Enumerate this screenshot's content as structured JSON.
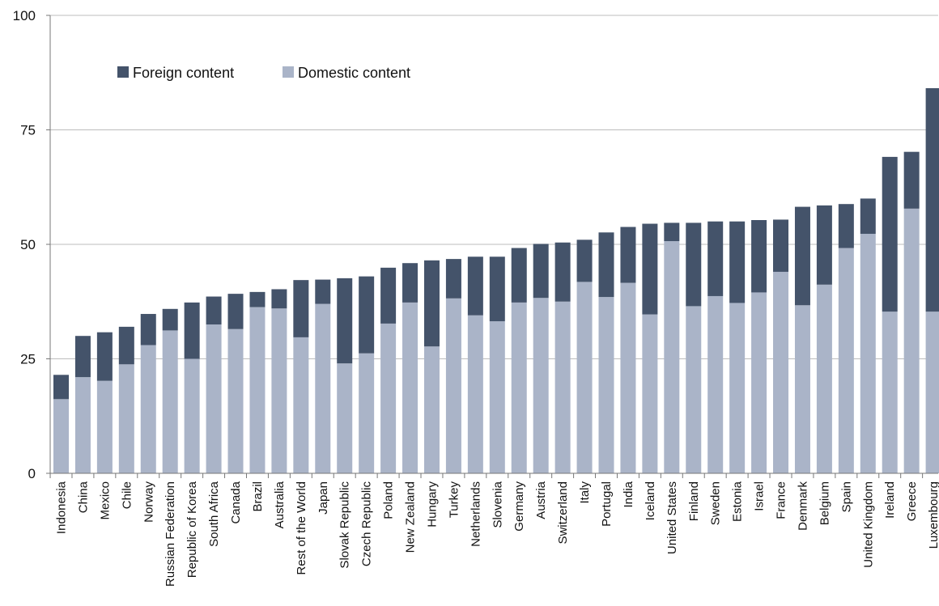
{
  "chart_data": {
    "type": "bar",
    "stacked": true,
    "categories": [
      "Indonesia",
      "China",
      "Mexico",
      "Chile",
      "Norway",
      "Russian Federation",
      "Republic of Korea",
      "South Africa",
      "Canada",
      "Brazil",
      "Australia",
      "Rest of the World",
      "Japan",
      "Slovak Republic",
      "Czech Republic",
      "Poland",
      "New Zealand",
      "Hungary",
      "Turkey",
      "Netherlands",
      "Slovenia",
      "Germany",
      "Austria",
      "Switzerland",
      "Italy",
      "Portugal",
      "India",
      "Iceland",
      "United States",
      "Finland",
      "Sweden",
      "Estonia",
      "Israel",
      "France",
      "Denmark",
      "Belgium",
      "Spain",
      "United Kingdom",
      "Ireland",
      "Greece",
      "Luxembourg"
    ],
    "series": [
      {
        "name": "Domestic content",
        "color": "#aab4c8",
        "values": [
          16.2,
          21.0,
          20.2,
          23.8,
          28.0,
          31.2,
          25.0,
          32.5,
          31.5,
          36.3,
          36.0,
          29.7,
          37.0,
          24.0,
          26.2,
          32.7,
          37.3,
          27.7,
          38.2,
          34.5,
          33.2,
          37.3,
          38.3,
          37.5,
          41.8,
          38.5,
          41.6,
          34.7,
          50.7,
          36.5,
          38.7,
          37.2,
          39.5,
          44.0,
          36.7,
          41.2,
          49.2,
          52.3,
          35.3,
          57.8,
          35.3
        ]
      },
      {
        "name": "Foreign content",
        "color": "#44536a",
        "values": [
          5.3,
          9.0,
          10.6,
          8.2,
          6.8,
          4.7,
          12.3,
          6.1,
          7.7,
          3.3,
          4.2,
          12.5,
          5.3,
          18.6,
          16.8,
          12.2,
          8.6,
          18.8,
          8.6,
          12.8,
          14.1,
          11.9,
          11.8,
          12.9,
          9.2,
          14.1,
          12.2,
          19.8,
          4.0,
          18.2,
          16.3,
          17.8,
          15.8,
          11.4,
          21.5,
          17.3,
          9.6,
          7.7,
          33.8,
          12.4,
          48.8
        ]
      }
    ],
    "ylim": [
      0,
      100
    ],
    "yticks": [
      "0",
      "25",
      "50",
      "75",
      "100"
    ],
    "grid": true,
    "legend_position": "top-left"
  }
}
